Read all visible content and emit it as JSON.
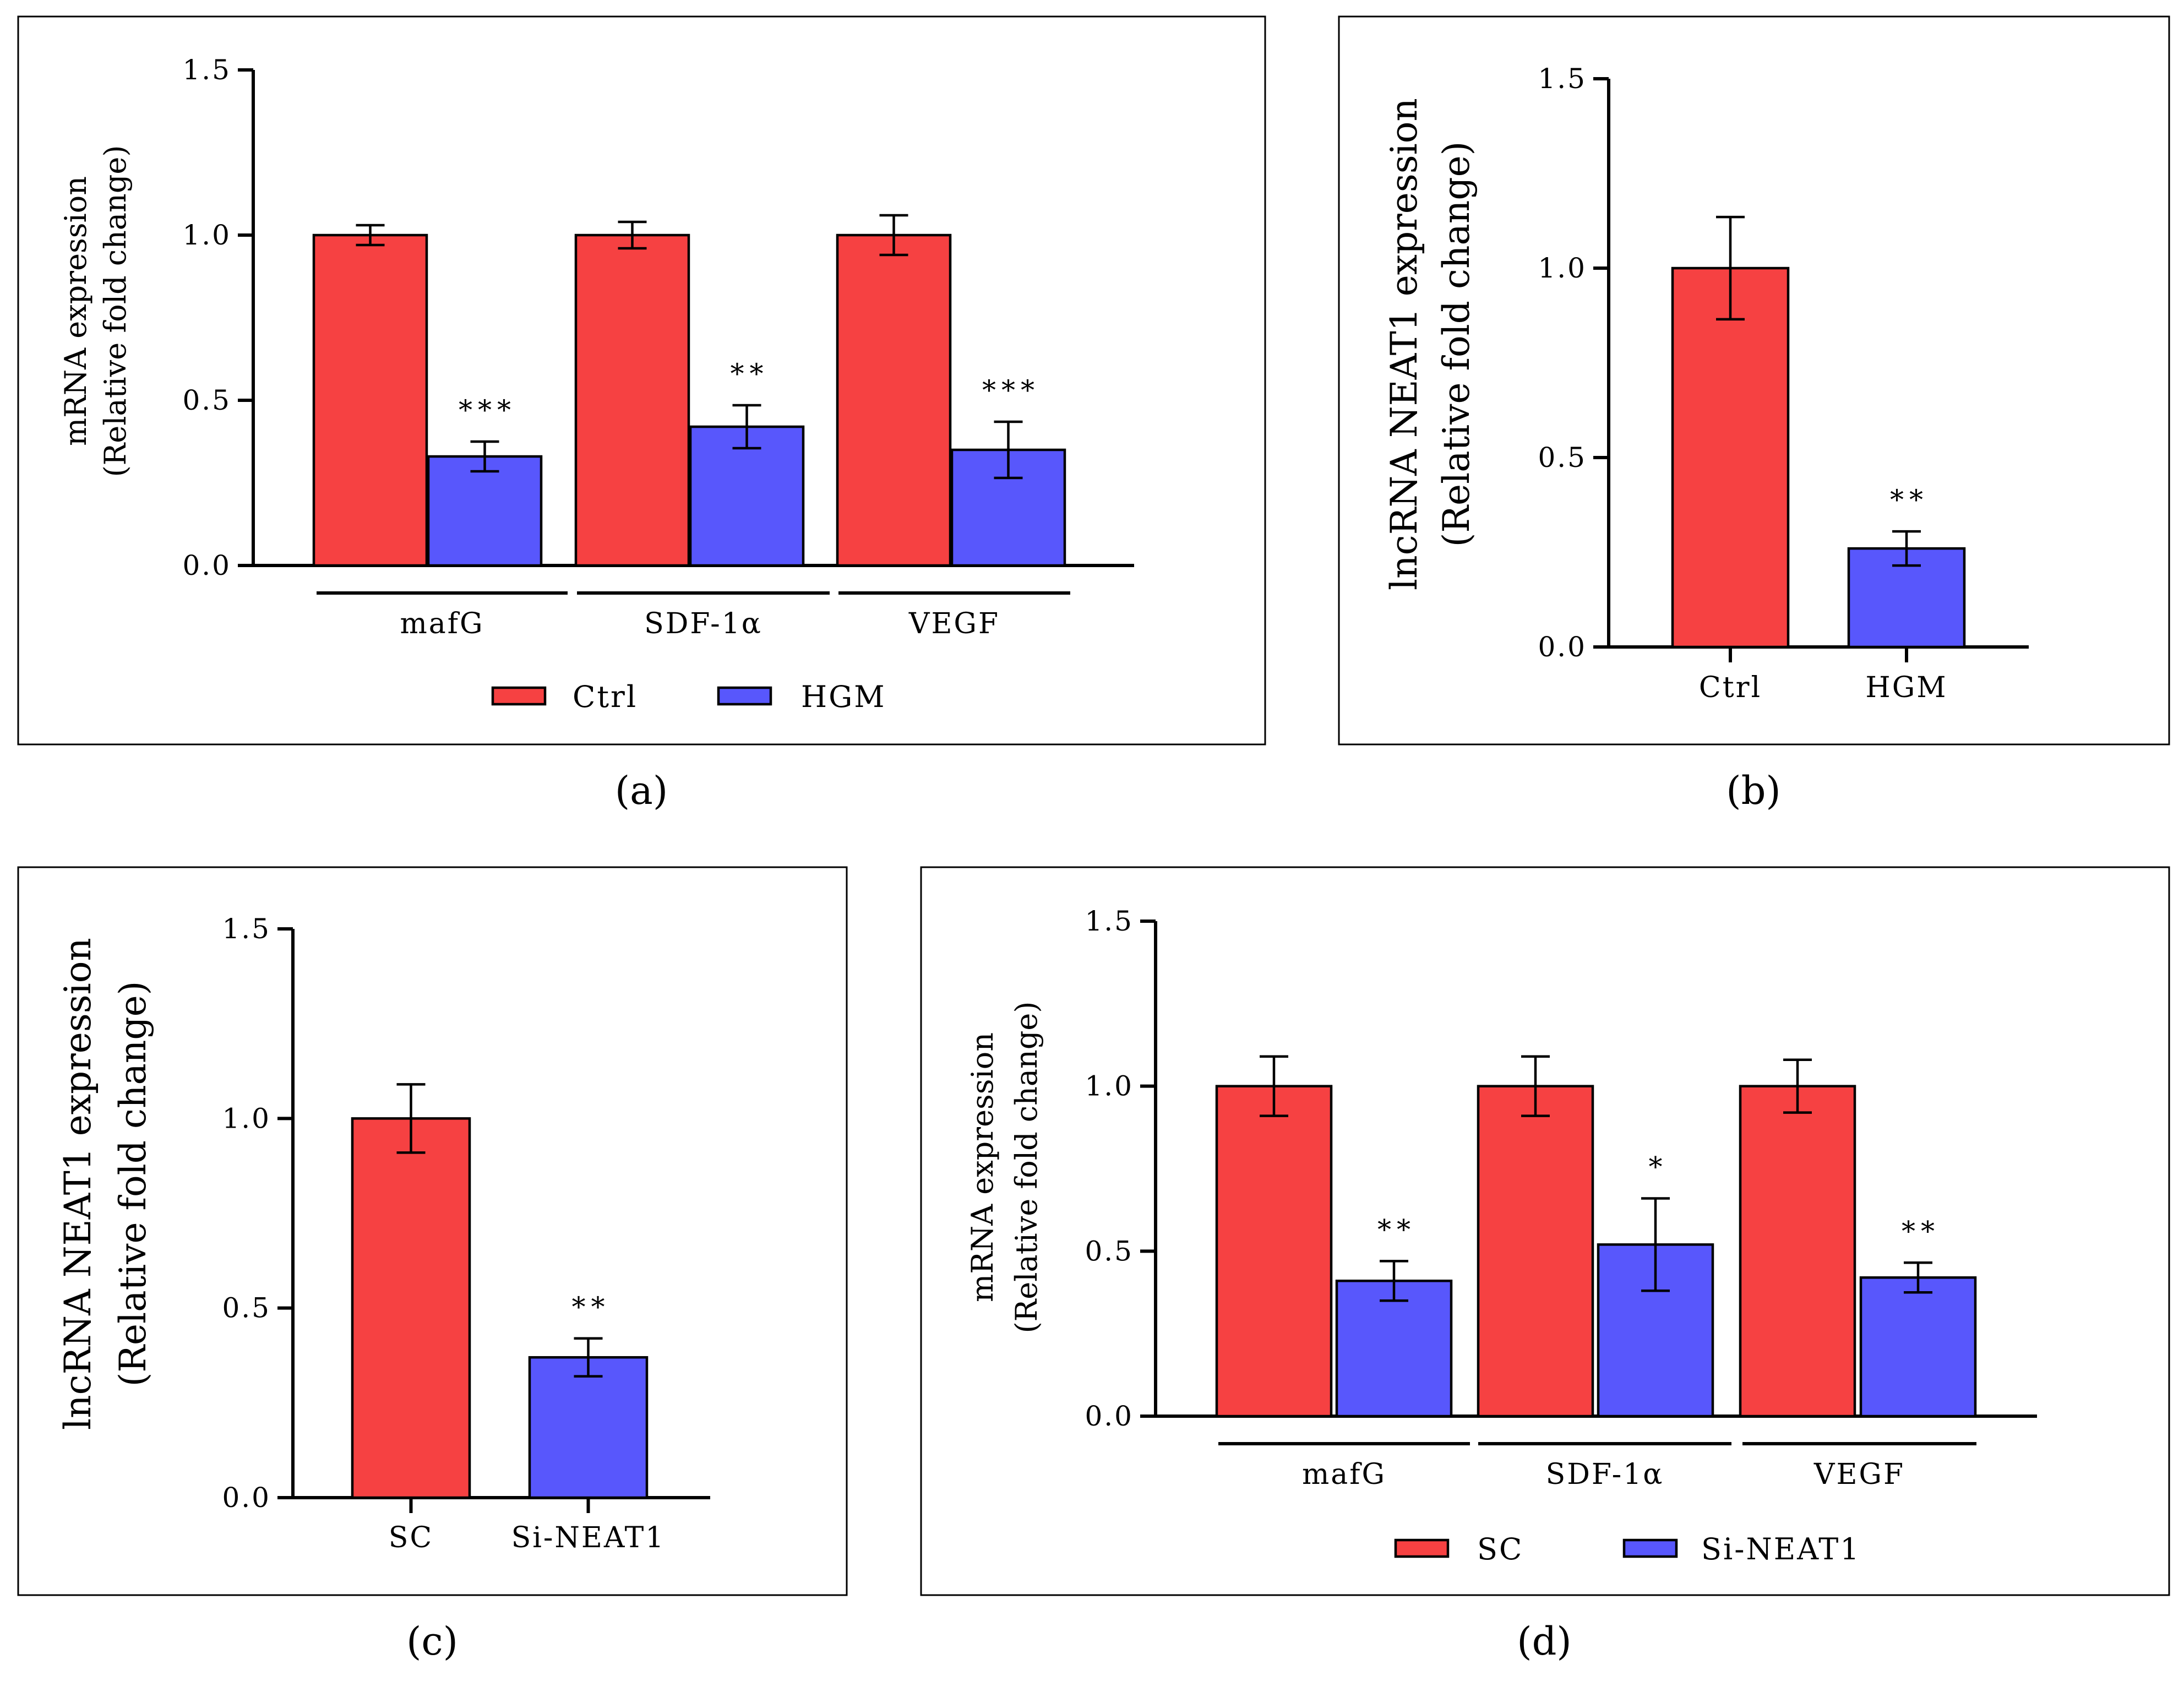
{
  "colors": {
    "group1": "#f64142",
    "group2": "#5857fc",
    "axis": "#000000"
  },
  "chart_data": [
    {
      "id": "a",
      "type": "bar",
      "caption": "(a)",
      "ylabel": [
        "mRNA expression",
        "(Relative fold change)"
      ],
      "ylim": [
        0,
        1.5
      ],
      "yticks": [
        "0.0",
        "0.5",
        "1.0",
        "1.5"
      ],
      "categories": [
        "mafG",
        "SDF-1α",
        "VEGF"
      ],
      "series": [
        {
          "name": "Ctrl",
          "values": [
            1.0,
            1.0,
            1.0
          ],
          "errors": [
            0.03,
            0.04,
            0.06
          ],
          "significance": [
            "",
            "",
            ""
          ]
        },
        {
          "name": "HGM",
          "values": [
            0.33,
            0.42,
            0.35
          ],
          "errors": [
            0.045,
            0.065,
            0.085
          ],
          "significance": [
            "***",
            "**",
            "***"
          ]
        }
      ],
      "legend": [
        "Ctrl",
        "HGM"
      ]
    },
    {
      "id": "b",
      "type": "bar",
      "caption": "(b)",
      "ylabel": [
        "lncRNA NEAT1 expression",
        "(Relative fold change)"
      ],
      "ylim": [
        0,
        1.5
      ],
      "yticks": [
        "0.0",
        "0.5",
        "1.0",
        "1.5"
      ],
      "categories": [
        "Ctrl",
        "HGM"
      ],
      "values": [
        1.0,
        0.26
      ],
      "errors": [
        0.135,
        0.045
      ],
      "significance": [
        "",
        "**"
      ]
    },
    {
      "id": "c",
      "type": "bar",
      "caption": "(c)",
      "ylabel": [
        "lncRNA NEAT1 expression",
        "(Relative fold change)"
      ],
      "ylim": [
        0,
        1.5
      ],
      "yticks": [
        "0.0",
        "0.5",
        "1.0",
        "1.5"
      ],
      "categories": [
        "SC",
        "Si-NEAT1"
      ],
      "values": [
        1.0,
        0.37
      ],
      "errors": [
        0.09,
        0.05
      ],
      "significance": [
        "",
        "**"
      ]
    },
    {
      "id": "d",
      "type": "bar",
      "caption": "(d)",
      "ylabel": [
        "mRNA expression",
        "(Relative fold change)"
      ],
      "ylim": [
        0,
        1.5
      ],
      "yticks": [
        "0.0",
        "0.5",
        "1.0",
        "1.5"
      ],
      "categories": [
        "mafG",
        "SDF-1α",
        "VEGF"
      ],
      "series": [
        {
          "name": "SC",
          "values": [
            1.0,
            1.0,
            1.0
          ],
          "errors": [
            0.09,
            0.09,
            0.08
          ],
          "significance": [
            "",
            "",
            ""
          ]
        },
        {
          "name": "Si-NEAT1",
          "values": [
            0.41,
            0.52,
            0.42
          ],
          "errors": [
            0.06,
            0.14,
            0.045
          ],
          "significance": [
            "**",
            "*",
            "**"
          ]
        }
      ],
      "legend": [
        "SC",
        "Si-NEAT1"
      ]
    }
  ]
}
